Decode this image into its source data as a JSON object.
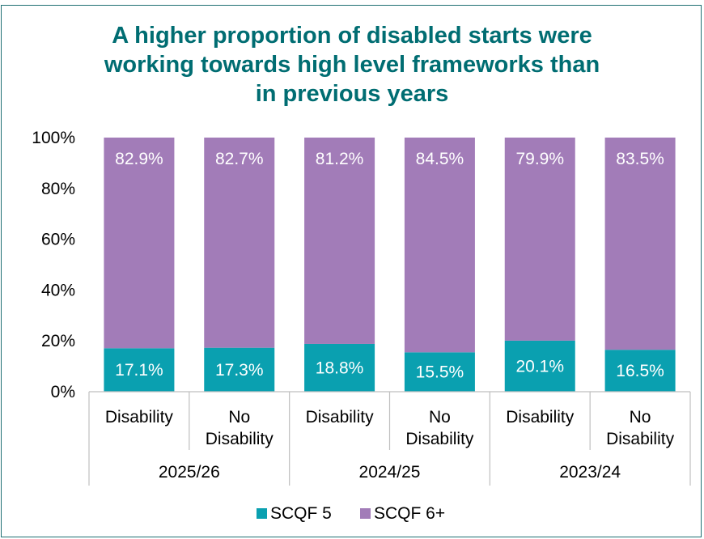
{
  "chart_data": {
    "type": "bar",
    "stacked": true,
    "title_lines": [
      "A higher proportion of disabled starts were",
      "working towards high level frameworks than",
      "in previous years"
    ],
    "categories": [
      {
        "label_lines": [
          "Disability"
        ],
        "group": "2025/26"
      },
      {
        "label_lines": [
          "No",
          "Disability"
        ],
        "group": "2025/26"
      },
      {
        "label_lines": [
          "Disability"
        ],
        "group": "2024/25"
      },
      {
        "label_lines": [
          "No",
          "Disability"
        ],
        "group": "2024/25"
      },
      {
        "label_lines": [
          "Disability"
        ],
        "group": "2023/24"
      },
      {
        "label_lines": [
          "No",
          "Disability"
        ],
        "group": "2023/24"
      }
    ],
    "groups": [
      "2025/26",
      "2024/25",
      "2023/24"
    ],
    "series": [
      {
        "name": "SCQF 5",
        "color": "#0aa0b0",
        "values": [
          17.1,
          17.3,
          18.8,
          15.5,
          20.1,
          16.5
        ],
        "labels": [
          "17.1%",
          "17.3%",
          "18.8%",
          "15.5%",
          "20.1%",
          "16.5%"
        ]
      },
      {
        "name": "SCQF 6+",
        "color": "#a27cb8",
        "values": [
          82.9,
          82.7,
          81.2,
          84.5,
          79.9,
          83.5
        ],
        "labels": [
          "82.9%",
          "82.7%",
          "81.2%",
          "84.5%",
          "79.9%",
          "83.5%"
        ]
      }
    ],
    "y_ticks": [
      "0%",
      "20%",
      "40%",
      "60%",
      "80%",
      "100%"
    ],
    "ylim": [
      0,
      100
    ],
    "legend_position": "bottom",
    "grid": false
  }
}
